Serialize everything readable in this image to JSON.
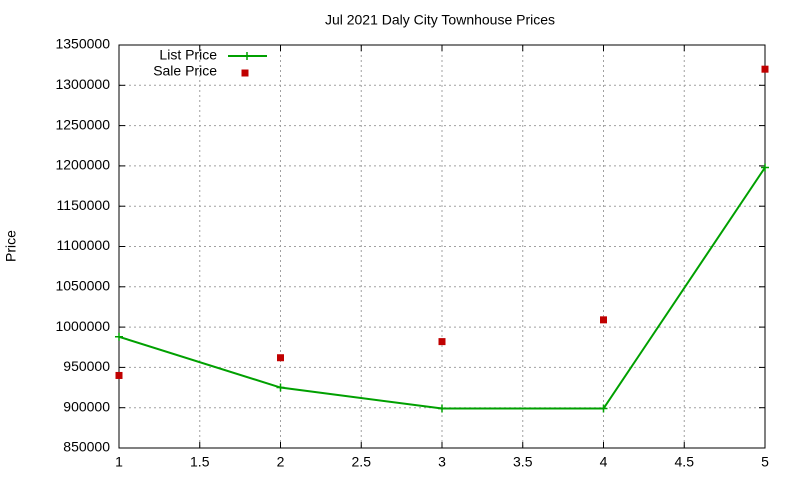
{
  "chart_data": {
    "type": "line",
    "title": "Jul 2021 Daly City Townhouse Prices",
    "y_label": "Price",
    "x": [
      1,
      2,
      3,
      4,
      5
    ],
    "series": [
      {
        "name": "List Price",
        "color": "#00a000",
        "style": "linespoints",
        "values": [
          988000,
          925000,
          899000,
          899000,
          1198000
        ]
      },
      {
        "name": "Sale Price",
        "color": "#c00000",
        "style": "points",
        "values": [
          940000,
          962000,
          982000,
          1009000,
          1320000
        ]
      }
    ],
    "xlim": [
      1,
      5
    ],
    "xticks": [
      1,
      1.5,
      2,
      2.5,
      3,
      3.5,
      4,
      4.5,
      5
    ],
    "ylim": [
      850000,
      1350000
    ],
    "yticks": [
      850000,
      900000,
      950000,
      1000000,
      1050000,
      1100000,
      1150000,
      1200000,
      1250000,
      1300000,
      1350000
    ],
    "grid": true,
    "legend": "top-left"
  }
}
